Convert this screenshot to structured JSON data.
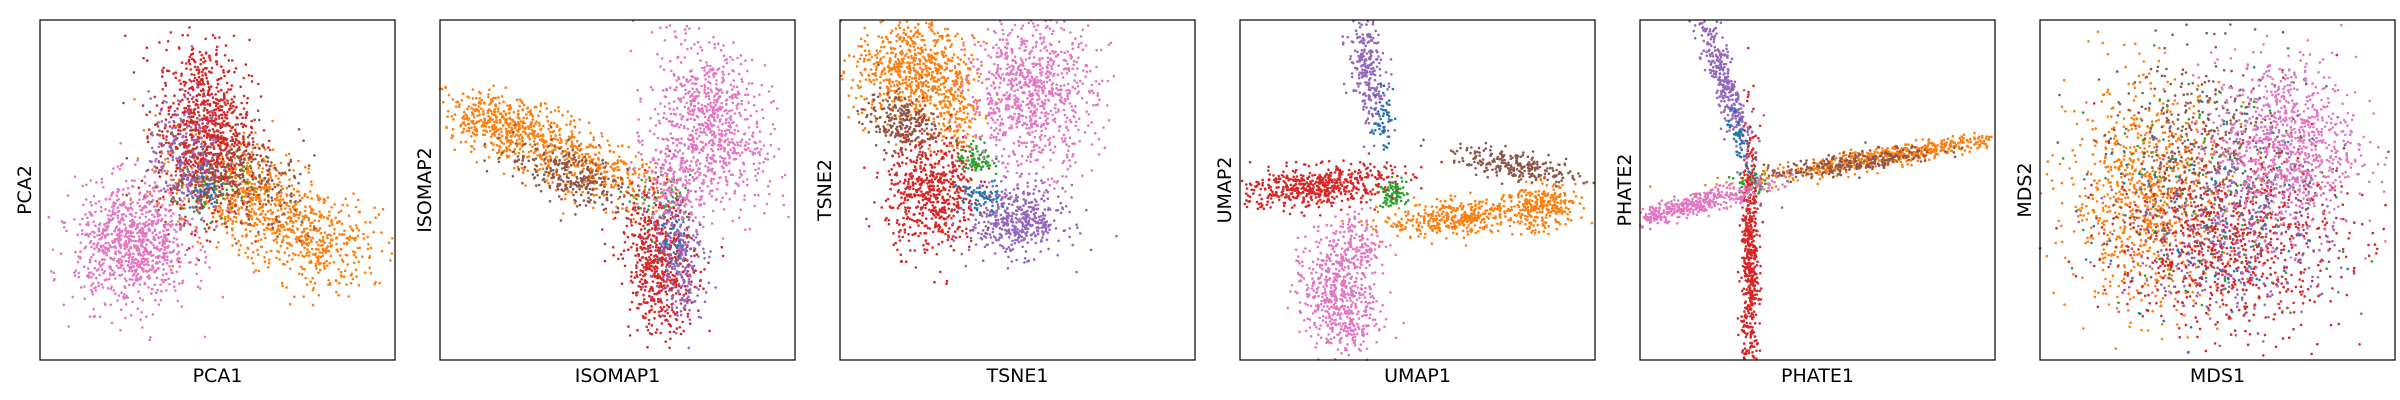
{
  "colors": {
    "orange": "#ff7f0e",
    "green": "#2ca02c",
    "red": "#d62728",
    "purple": "#9467bd",
    "brown": "#8c564b",
    "pink": "#e377c2",
    "blue": "#1f77b4"
  },
  "chart_data": [
    {
      "type": "scatter",
      "xlabel": "PCA1",
      "ylabel": "PCA2",
      "xticks": [],
      "yticks": [],
      "xlim": [
        0,
        10
      ],
      "ylim": [
        0,
        10
      ],
      "series": [
        {
          "color": "orange",
          "clusters": [
            {
              "cx": 5.8,
              "cy": 4.8,
              "sx": 1.2,
              "sy": 0.7,
              "rot": -0.55,
              "n": 650
            },
            {
              "cx": 7.8,
              "cy": 3.5,
              "sx": 0.9,
              "sy": 0.7,
              "rot": -0.3,
              "n": 350
            }
          ]
        },
        {
          "color": "brown",
          "clusters": [
            {
              "cx": 5.5,
              "cy": 5.5,
              "sx": 1.0,
              "sy": 0.7,
              "rot": -0.55,
              "n": 320
            }
          ]
        },
        {
          "color": "green",
          "clusters": [
            {
              "cx": 4.6,
              "cy": 5.2,
              "sx": 0.6,
              "sy": 0.6,
              "rot": 0,
              "n": 90
            }
          ]
        },
        {
          "color": "red",
          "clusters": [
            {
              "cx": 4.6,
              "cy": 6.8,
              "sx": 0.65,
              "sy": 1.3,
              "rot": 0,
              "n": 850
            }
          ]
        },
        {
          "color": "purple",
          "clusters": [
            {
              "cx": 4.1,
              "cy": 6.0,
              "sx": 0.5,
              "sy": 0.9,
              "rot": 0,
              "n": 220
            }
          ]
        },
        {
          "color": "blue",
          "clusters": [
            {
              "cx": 4.7,
              "cy": 5.0,
              "sx": 0.3,
              "sy": 0.3,
              "rot": 0,
              "n": 40
            }
          ]
        },
        {
          "color": "pink",
          "clusters": [
            {
              "cx": 2.6,
              "cy": 3.4,
              "sx": 0.8,
              "sy": 0.9,
              "rot": 0,
              "n": 900
            }
          ]
        }
      ]
    },
    {
      "type": "scatter",
      "xlabel": "ISOMAP1",
      "ylabel": "ISOMAP2",
      "xticks": [],
      "yticks": [],
      "xlim": [
        0,
        10
      ],
      "ylim": [
        0,
        10
      ],
      "series": [
        {
          "color": "orange",
          "clusters": [
            {
              "cx": 2.0,
              "cy": 6.8,
              "sx": 1.0,
              "sy": 0.45,
              "rot": -0.3,
              "n": 550
            },
            {
              "cx": 4.3,
              "cy": 5.6,
              "sx": 1.0,
              "sy": 0.45,
              "rot": -0.35,
              "n": 300
            }
          ]
        },
        {
          "color": "brown",
          "clusters": [
            {
              "cx": 3.8,
              "cy": 5.4,
              "sx": 1.0,
              "sy": 0.4,
              "rot": -0.35,
              "n": 280
            }
          ]
        },
        {
          "color": "green",
          "clusters": [
            {
              "cx": 6.3,
              "cy": 4.6,
              "sx": 0.4,
              "sy": 0.4,
              "rot": 0,
              "n": 60
            }
          ]
        },
        {
          "color": "red",
          "clusters": [
            {
              "cx": 6.2,
              "cy": 2.8,
              "sx": 0.5,
              "sy": 1.0,
              "rot": 0.1,
              "n": 600
            }
          ]
        },
        {
          "color": "purple",
          "clusters": [
            {
              "cx": 6.7,
              "cy": 3.2,
              "sx": 0.35,
              "sy": 1.0,
              "rot": 0.1,
              "n": 250
            }
          ]
        },
        {
          "color": "blue",
          "clusters": [
            {
              "cx": 6.5,
              "cy": 3.5,
              "sx": 0.25,
              "sy": 0.4,
              "rot": 0,
              "n": 30
            }
          ]
        },
        {
          "color": "pink",
          "clusters": [
            {
              "cx": 7.7,
              "cy": 7.0,
              "sx": 0.7,
              "sy": 1.2,
              "rot": 0.35,
              "n": 700
            },
            {
              "cx": 6.7,
              "cy": 5.5,
              "sx": 0.5,
              "sy": 0.8,
              "rot": 0.3,
              "n": 250
            }
          ]
        }
      ]
    },
    {
      "type": "scatter",
      "xlabel": "TSNE1",
      "ylabel": "TSNE2",
      "xticks": [],
      "yticks": [],
      "xlim": [
        0,
        10
      ],
      "ylim": [
        0,
        10
      ],
      "series": [
        {
          "color": "orange",
          "clusters": [
            {
              "cx": 2.1,
              "cy": 8.5,
              "sx": 0.85,
              "sy": 0.8,
              "rot": 0,
              "n": 700
            },
            {
              "cx": 3.2,
              "cy": 7.2,
              "sx": 0.35,
              "sy": 0.6,
              "rot": 0,
              "n": 150
            }
          ]
        },
        {
          "color": "brown",
          "clusters": [
            {
              "cx": 1.7,
              "cy": 7.0,
              "sx": 0.55,
              "sy": 0.4,
              "rot": -0.3,
              "n": 250
            }
          ]
        },
        {
          "color": "green",
          "clusters": [
            {
              "cx": 3.8,
              "cy": 5.9,
              "sx": 0.25,
              "sy": 0.25,
              "rot": 0,
              "n": 90
            }
          ]
        },
        {
          "color": "red",
          "clusters": [
            {
              "cx": 2.6,
              "cy": 4.9,
              "sx": 0.65,
              "sy": 0.85,
              "rot": 0,
              "n": 600
            }
          ]
        },
        {
          "color": "purple",
          "clusters": [
            {
              "cx": 5.0,
              "cy": 4.1,
              "sx": 0.65,
              "sy": 0.5,
              "rot": 0,
              "n": 450
            }
          ]
        },
        {
          "color": "blue",
          "clusters": [
            {
              "cx": 3.9,
              "cy": 4.8,
              "sx": 0.3,
              "sy": 0.25,
              "rot": 0,
              "n": 60
            }
          ]
        },
        {
          "color": "pink",
          "clusters": [
            {
              "cx": 5.4,
              "cy": 7.8,
              "sx": 0.9,
              "sy": 1.1,
              "rot": 0,
              "n": 850
            }
          ]
        }
      ]
    },
    {
      "type": "scatter",
      "xlabel": "UMAP1",
      "ylabel": "UMAP2",
      "xticks": [],
      "yticks": [],
      "xlim": [
        0,
        10
      ],
      "ylim": [
        0,
        10
      ],
      "series": [
        {
          "color": "orange",
          "clusters": [
            {
              "cx": 6.2,
              "cy": 4.2,
              "sx": 1.1,
              "sy": 0.25,
              "rot": 0.1,
              "n": 400
            },
            {
              "cx": 8.6,
              "cy": 4.5,
              "sx": 0.5,
              "sy": 0.35,
              "rot": 0.2,
              "n": 250
            }
          ]
        },
        {
          "color": "brown",
          "clusters": [
            {
              "cx": 7.8,
              "cy": 5.7,
              "sx": 0.9,
              "sy": 0.2,
              "rot": -0.2,
              "n": 250
            }
          ]
        },
        {
          "color": "green",
          "clusters": [
            {
              "cx": 4.3,
              "cy": 4.9,
              "sx": 0.2,
              "sy": 0.2,
              "rot": 0,
              "n": 90
            }
          ]
        },
        {
          "color": "red",
          "clusters": [
            {
              "cx": 2.1,
              "cy": 5.1,
              "sx": 1.1,
              "sy": 0.3,
              "rot": 0.1,
              "n": 550
            }
          ]
        },
        {
          "color": "purple",
          "clusters": [
            {
              "cx": 3.6,
              "cy": 8.5,
              "sx": 0.25,
              "sy": 0.8,
              "rot": 0.1,
              "n": 250
            }
          ]
        },
        {
          "color": "blue",
          "clusters": [
            {
              "cx": 4.0,
              "cy": 7.1,
              "sx": 0.15,
              "sy": 0.4,
              "rot": 0,
              "n": 50
            }
          ]
        },
        {
          "color": "pink",
          "clusters": [
            {
              "cx": 2.8,
              "cy": 1.8,
              "sx": 0.5,
              "sy": 0.9,
              "rot": 0.3,
              "n": 550
            },
            {
              "cx": 3.3,
              "cy": 3.3,
              "sx": 0.35,
              "sy": 0.5,
              "rot": 0.3,
              "n": 150
            }
          ]
        }
      ]
    },
    {
      "type": "scatter",
      "xlabel": "PHATE1",
      "ylabel": "PHATE2",
      "xticks": [],
      "yticks": [],
      "xlim": [
        0,
        10
      ],
      "ylim": [
        0,
        10
      ],
      "series": [
        {
          "color": "orange",
          "clusters": [
            {
              "cx": 7.0,
              "cy": 6.0,
              "sx": 2.0,
              "sy": 0.15,
              "rot": 0.18,
              "n": 600
            }
          ]
        },
        {
          "color": "brown",
          "clusters": [
            {
              "cx": 6.0,
              "cy": 5.8,
              "sx": 1.2,
              "sy": 0.15,
              "rot": 0.15,
              "n": 250
            }
          ]
        },
        {
          "color": "green",
          "clusters": [
            {
              "cx": 3.1,
              "cy": 5.2,
              "sx": 0.2,
              "sy": 0.2,
              "rot": 0,
              "n": 60
            }
          ]
        },
        {
          "color": "red",
          "clusters": [
            {
              "cx": 3.1,
              "cy": 2.9,
              "sx": 0.12,
              "sy": 1.9,
              "rot": 0,
              "n": 550
            }
          ]
        },
        {
          "color": "purple",
          "clusters": [
            {
              "cx": 2.4,
              "cy": 8.1,
              "sx": 0.18,
              "sy": 1.3,
              "rot": 0.3,
              "n": 350
            }
          ]
        },
        {
          "color": "blue",
          "clusters": [
            {
              "cx": 2.8,
              "cy": 6.4,
              "sx": 0.12,
              "sy": 0.5,
              "rot": 0.3,
              "n": 50
            }
          ]
        },
        {
          "color": "pink",
          "clusters": [
            {
              "cx": 1.6,
              "cy": 4.6,
              "sx": 1.1,
              "sy": 0.15,
              "rot": 0.28,
              "n": 400
            }
          ]
        }
      ]
    },
    {
      "type": "scatter",
      "xlabel": "MDS1",
      "ylabel": "MDS2",
      "xticks": [],
      "yticks": [],
      "xlim": [
        0,
        10
      ],
      "ylim": [
        0,
        10
      ],
      "series": [
        {
          "color": "orange",
          "clusters": [
            {
              "cx": 3.0,
              "cy": 4.8,
              "sx": 1.1,
              "sy": 1.6,
              "rot": 0,
              "n": 900
            }
          ]
        },
        {
          "color": "brown",
          "clusters": [
            {
              "cx": 4.8,
              "cy": 6.0,
              "sx": 1.4,
              "sy": 1.5,
              "rot": 0,
              "n": 450
            }
          ]
        },
        {
          "color": "green",
          "clusters": [
            {
              "cx": 5.0,
              "cy": 5.0,
              "sx": 1.6,
              "sy": 1.8,
              "rot": 0,
              "n": 150
            }
          ]
        },
        {
          "color": "red",
          "clusters": [
            {
              "cx": 5.3,
              "cy": 3.4,
              "sx": 1.6,
              "sy": 1.3,
              "rot": 0,
              "n": 800
            }
          ]
        },
        {
          "color": "purple",
          "clusters": [
            {
              "cx": 5.5,
              "cy": 3.8,
              "sx": 1.5,
              "sy": 1.4,
              "rot": 0,
              "n": 350
            }
          ]
        },
        {
          "color": "blue",
          "clusters": [
            {
              "cx": 5.0,
              "cy": 4.5,
              "sx": 1.7,
              "sy": 1.7,
              "rot": 0,
              "n": 150
            }
          ]
        },
        {
          "color": "pink",
          "clusters": [
            {
              "cx": 6.9,
              "cy": 6.3,
              "sx": 1.0,
              "sy": 1.3,
              "rot": 0,
              "n": 900
            }
          ]
        }
      ]
    }
  ]
}
